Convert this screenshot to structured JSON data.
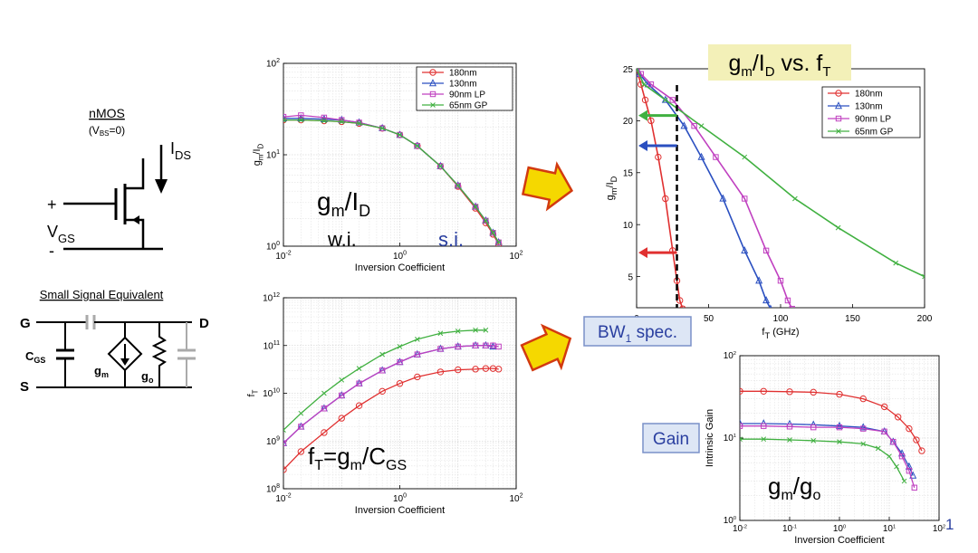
{
  "colors": {
    "s180": "#e03030",
    "s130": "#2a4fc0",
    "s90": "#c040c0",
    "s65": "#40b040",
    "hilite": "#f3f0b8",
    "boxfill": "#dde6f5",
    "boxtext": "#2a3fa0"
  },
  "series_names": [
    "180nm",
    "130nm",
    "90nm LP",
    "65nm GP"
  ],
  "series_markers": [
    "circle",
    "triangle",
    "square",
    "x"
  ],
  "schematic": {
    "nmos_title": "nMOS",
    "vbs_prefix": "(V",
    "vbs_sub": "BS",
    "vbs_suffix": "=0)",
    "ids_main": "I",
    "ids_sub": "DS",
    "vgs_main": "V",
    "vgs_sub": "GS",
    "plus": "+",
    "minus": "-",
    "ss_title": "Small Signal Equivalent",
    "g_label": "G",
    "d_label": "D",
    "s_label": "S",
    "cgs_main": "C",
    "cgs_sub": "GS",
    "gm_main": "g",
    "gm_sub": "m",
    "go_main": "g",
    "go_sub": "o"
  },
  "annotations": {
    "gmid_main": "g",
    "gmid_sub1": "m",
    "gmid_mid": "/I",
    "gmid_sub2": "D",
    "wi": "w.i.",
    "si": "s.i.",
    "ft_main": "f",
    "ft_sub1": "T",
    "ft_mid": "=g",
    "ft_sub2": "m",
    "ft_mid2": "/C",
    "ft_sub3": "GS",
    "title_main": "g",
    "title_sub1": "m",
    "title_mid": "/I",
    "title_sub2": "D",
    "title_mid2": " vs. f",
    "title_sub3": "T",
    "bw_main": "BW",
    "bw_sub": "1",
    "bw_suffix": " spec.",
    "gain": "Gain",
    "gmgo_main": "g",
    "gmgo_sub1": "m",
    "gmgo_mid": "/g",
    "gmgo_sub2": "o",
    "stray_one": "1"
  },
  "chart_data": [
    {
      "id": "gm_id_vs_ic",
      "type": "line",
      "xscale": "log",
      "yscale": "log",
      "xlim": [
        0.01,
        100
      ],
      "ylim": [
        1,
        100
      ],
      "x_ticks": [
        "10^-2",
        "10^0",
        "10^2"
      ],
      "y_ticks": [
        "10^0",
        "10^1",
        "10^2"
      ],
      "xlabel": "Inversion Coefficient",
      "ylabel_main": "g",
      "ylabel_sub1": "m",
      "ylabel_mid": "/I",
      "ylabel_sub2": "D",
      "grid": true,
      "legend": "top-right",
      "series": [
        {
          "name": "180nm",
          "x": [
            0.01,
            0.02,
            0.05,
            0.1,
            0.2,
            0.5,
            1,
            2,
            5,
            10,
            20,
            30,
            40,
            50
          ],
          "y": [
            24,
            24,
            23.5,
            23,
            22,
            19.5,
            16.5,
            12.5,
            7.5,
            4.5,
            2.6,
            1.8,
            1.35,
            1.05
          ]
        },
        {
          "name": "130nm",
          "x": [
            0.01,
            0.02,
            0.05,
            0.1,
            0.2,
            0.5,
            1,
            2,
            5,
            10,
            20,
            30,
            40,
            50
          ],
          "y": [
            25,
            25,
            24.5,
            24,
            22.5,
            19.5,
            16.5,
            12.5,
            7.5,
            4.6,
            2.7,
            1.9,
            1.4,
            1.1
          ]
        },
        {
          "name": "90nm LP",
          "x": [
            0.01,
            0.02,
            0.05,
            0.1,
            0.2,
            0.5,
            1,
            2,
            5,
            10,
            20,
            30,
            40,
            50
          ],
          "y": [
            26,
            27,
            25.5,
            24,
            22.5,
            19.5,
            16.5,
            12.5,
            7.5,
            4.6,
            2.7,
            1.9,
            1.4,
            1.1
          ]
        },
        {
          "name": "65nm GP",
          "x": [
            0.01,
            0.02,
            0.05,
            0.1,
            0.2,
            0.5,
            1,
            2,
            5,
            10,
            20,
            30,
            40,
            50
          ],
          "y": [
            24,
            24,
            23.5,
            23,
            22,
            19.5,
            16.5,
            12.5,
            7.5,
            4.6,
            2.7,
            1.9,
            1.4,
            1.1
          ]
        }
      ]
    },
    {
      "id": "ft_vs_ic",
      "type": "line",
      "xscale": "log",
      "yscale": "log",
      "xlim": [
        0.01,
        100
      ],
      "ylim": [
        100000000.0,
        1000000000000.0
      ],
      "x_ticks": [
        "10^-2",
        "10^0",
        "10^2"
      ],
      "y_ticks": [
        "10^8",
        "10^9",
        "10^10",
        "10^11",
        "10^12"
      ],
      "xlabel": "Inversion Coefficient",
      "ylabel_main": "f",
      "ylabel_sub1": "T",
      "grid": true,
      "legend": "none",
      "series": [
        {
          "name": "180nm",
          "x": [
            0.01,
            0.02,
            0.05,
            0.1,
            0.2,
            0.5,
            1,
            2,
            5,
            10,
            20,
            30,
            40,
            50
          ],
          "y": [
            250000000.0,
            600000000.0,
            1500000000.0,
            3000000000.0,
            5500000000.0,
            11000000000.0,
            16000000000.0,
            22000000000.0,
            28000000000.0,
            31000000000.0,
            32000000000.0,
            33000000000.0,
            33000000000.0,
            32000000000.0
          ]
        },
        {
          "name": "130nm",
          "x": [
            0.01,
            0.02,
            0.05,
            0.1,
            0.2,
            0.5,
            1,
            2,
            5,
            10,
            20,
            30,
            40
          ],
          "y": [
            900000000.0,
            2000000000.0,
            4800000000.0,
            9000000000.0,
            16000000000.0,
            30000000000.0,
            45000000000.0,
            65000000000.0,
            85000000000.0,
            95000000000.0,
            100000000000.0,
            100000000000.0,
            95000000000.0
          ]
        },
        {
          "name": "90nm LP",
          "x": [
            0.01,
            0.02,
            0.05,
            0.1,
            0.2,
            0.5,
            1,
            2,
            5,
            10,
            20,
            30,
            40,
            50
          ],
          "y": [
            900000000.0,
            2000000000.0,
            4800000000.0,
            9000000000.0,
            16000000000.0,
            30000000000.0,
            45000000000.0,
            65000000000.0,
            85000000000.0,
            95000000000.0,
            100000000000.0,
            100000000000.0,
            100000000000.0,
            95000000000.0
          ]
        },
        {
          "name": "65nm GP",
          "x": [
            0.01,
            0.02,
            0.05,
            0.1,
            0.2,
            0.5,
            1,
            2,
            5,
            10,
            20,
            30
          ],
          "y": [
            1700000000.0,
            3800000000.0,
            10000000000.0,
            19000000000.0,
            33000000000.0,
            65000000000.0,
            95000000000.0,
            135000000000.0,
            180000000000.0,
            200000000000.0,
            210000000000.0,
            210000000000.0
          ]
        }
      ]
    },
    {
      "id": "gm_id_vs_ft",
      "type": "line",
      "xscale": "linear",
      "yscale": "linear",
      "xlim": [
        0,
        200
      ],
      "ylim": [
        2,
        25
      ],
      "x_ticks": [
        "0",
        "50",
        "100",
        "150",
        "200"
      ],
      "y_ticks": [
        "5",
        "10",
        "15",
        "20",
        "25"
      ],
      "xlabel_main": "f",
      "xlabel_sub": "T",
      "xlabel_suffix": " (GHz)",
      "ylabel_main": "g",
      "ylabel_sub1": "m",
      "ylabel_mid": "/I",
      "ylabel_sub2": "D",
      "grid": false,
      "legend": "top-right",
      "spec_line_x": 28,
      "arrows": [
        {
          "color": "s130",
          "from": [
            28,
            17.6
          ],
          "to": [
            0,
            17.6
          ]
        },
        {
          "color": "s180",
          "from": [
            28,
            7.3
          ],
          "to": [
            0,
            7.3
          ]
        },
        {
          "color": "s65",
          "from": [
            28,
            20.5
          ],
          "to": [
            0,
            20.5
          ]
        }
      ],
      "series": [
        {
          "name": "180nm",
          "x": [
            0,
            1,
            3,
            6,
            10,
            15,
            20,
            25,
            28,
            30,
            32
          ],
          "y": [
            25,
            24.5,
            23.5,
            22,
            20,
            16.5,
            12.5,
            7.5,
            4.6,
            2.7,
            1.9
          ]
        },
        {
          "name": "130nm",
          "x": [
            0,
            2,
            8,
            20,
            33,
            45,
            60,
            75,
            85,
            90,
            93
          ],
          "y": [
            25,
            24.5,
            23.5,
            22,
            19.5,
            16.5,
            12.5,
            7.5,
            4.6,
            2.7,
            1.9
          ]
        },
        {
          "name": "90nm LP",
          "x": [
            0,
            3,
            10,
            25,
            40,
            55,
            75,
            90,
            100,
            105,
            108
          ],
          "y": [
            25,
            24.5,
            23.5,
            22,
            19.5,
            16.5,
            12.5,
            7.5,
            4.6,
            2.7,
            1.9
          ]
        },
        {
          "name": "65nm GP",
          "x": [
            0,
            5,
            20,
            45,
            75,
            110,
            140,
            180,
            200
          ],
          "y": [
            25,
            23.5,
            22,
            19.5,
            16.5,
            12.5,
            9.7,
            6.3,
            5
          ]
        }
      ]
    },
    {
      "id": "gain_vs_ic",
      "type": "line",
      "xscale": "log",
      "yscale": "log",
      "xlim": [
        0.01,
        100
      ],
      "ylim": [
        1,
        100
      ],
      "x_ticks": [
        "10^-2",
        "10^-1",
        "10^0",
        "10^1",
        "10^2"
      ],
      "y_ticks": [
        "10^0",
        "10^1",
        "10^2"
      ],
      "xlabel": "Inversion Coefficient",
      "ylabel": "Intrinsic Gain",
      "grid": true,
      "legend": "none",
      "series": [
        {
          "name": "180nm",
          "x": [
            0.01,
            0.03,
            0.1,
            0.3,
            1,
            3,
            8,
            15,
            25,
            35,
            45
          ],
          "y": [
            37,
            37,
            36.5,
            36,
            34,
            30,
            24,
            18,
            13,
            9.5,
            7
          ]
        },
        {
          "name": "130nm",
          "x": [
            0.01,
            0.03,
            0.1,
            0.3,
            1,
            3,
            8,
            12,
            18,
            25,
            30
          ],
          "y": [
            15,
            15,
            14.8,
            14.5,
            14,
            13.5,
            12,
            9,
            6.5,
            4.5,
            3.5
          ]
        },
        {
          "name": "90nm LP",
          "x": [
            0.01,
            0.03,
            0.1,
            0.3,
            1,
            3,
            8,
            12,
            18,
            25,
            32
          ],
          "y": [
            14,
            14,
            13.8,
            13.5,
            13.5,
            13,
            12,
            9,
            6,
            4,
            2.5
          ]
        },
        {
          "name": "65nm GP",
          "x": [
            0.01,
            0.03,
            0.1,
            0.3,
            1,
            3,
            6,
            10,
            14,
            20
          ],
          "y": [
            9.7,
            9.7,
            9.5,
            9.3,
            9,
            8.5,
            7.5,
            6,
            4.5,
            3
          ]
        }
      ]
    }
  ]
}
